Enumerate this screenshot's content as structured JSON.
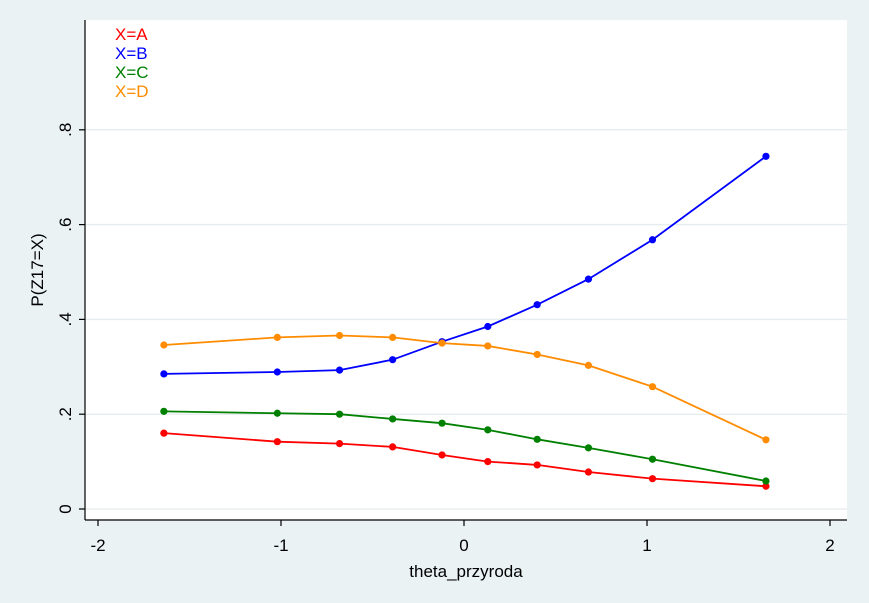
{
  "chart_data": {
    "type": "line",
    "title": "",
    "xlabel": "theta_przyroda",
    "ylabel": "P(Z17=X)",
    "xlim": [
      -2,
      2
    ],
    "ylim": [
      0,
      1
    ],
    "x_ticks": [
      -2,
      -1,
      0,
      1,
      2
    ],
    "x_tick_labels": [
      "-2",
      "-1",
      "0",
      "1",
      "2"
    ],
    "y_ticks": [
      0,
      0.2,
      0.4,
      0.6,
      0.8
    ],
    "y_tick_labels": [
      "0",
      ".2",
      ".4",
      ".6",
      ".8"
    ],
    "grid": "horizontal",
    "legend_position": "top-left",
    "x": [
      -1.64,
      -1.02,
      -0.68,
      -0.39,
      -0.12,
      0.13,
      0.4,
      0.68,
      1.03,
      1.65
    ],
    "series": [
      {
        "name": "X=A",
        "color": "#ff0000",
        "values": [
          0.16,
          0.142,
          0.138,
          0.131,
          0.114,
          0.1,
          0.093,
          0.078,
          0.064,
          0.048
        ]
      },
      {
        "name": "X=B",
        "color": "#0000ff",
        "values": [
          0.285,
          0.289,
          0.293,
          0.315,
          0.353,
          0.385,
          0.431,
          0.485,
          0.568,
          0.744
        ]
      },
      {
        "name": "X=C",
        "color": "#008000",
        "values": [
          0.206,
          0.202,
          0.2,
          0.19,
          0.181,
          0.167,
          0.147,
          0.129,
          0.105,
          0.059
        ]
      },
      {
        "name": "X=D",
        "color": "#ff8c00",
        "values": [
          0.346,
          0.362,
          0.366,
          0.362,
          0.35,
          0.344,
          0.326,
          0.303,
          0.258,
          0.146
        ]
      }
    ]
  }
}
